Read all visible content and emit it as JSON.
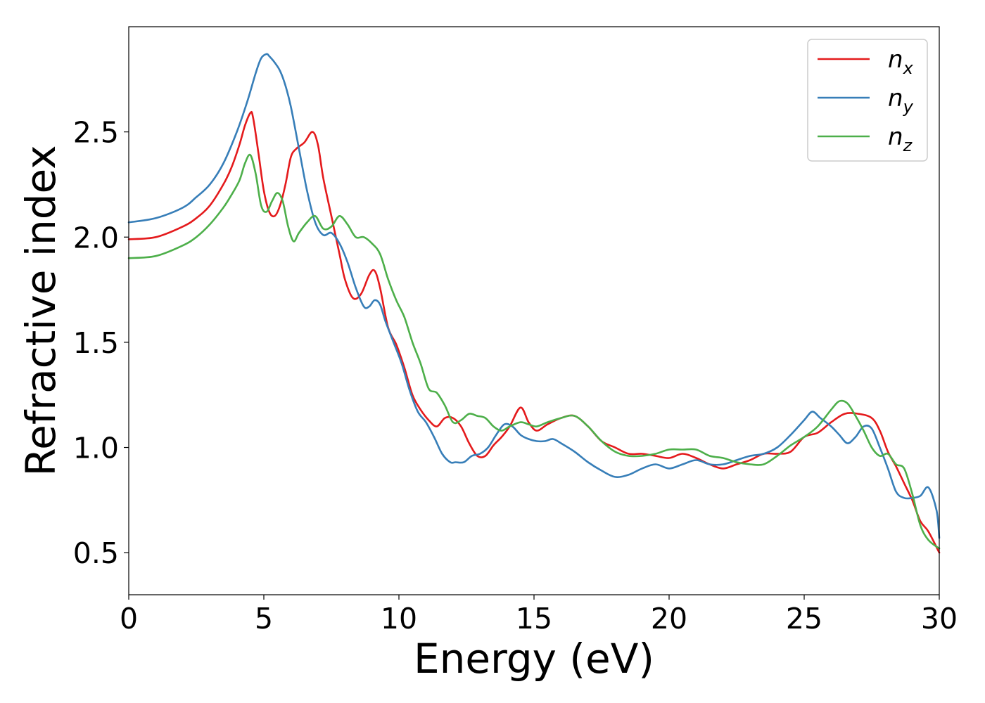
{
  "chart_data": {
    "type": "line",
    "xlabel": "Energy (eV)",
    "ylabel": "Refractive index",
    "xlim": [
      0,
      30
    ],
    "ylim": [
      0.3,
      3.0
    ],
    "xticks": [
      "0",
      "5",
      "10",
      "15",
      "20",
      "25",
      "30"
    ],
    "yticks": [
      "0.5",
      "1.0",
      "1.5",
      "2.0",
      "2.5"
    ],
    "grid": false,
    "legend_position": "top-right",
    "series": [
      {
        "name": "n",
        "subscript": "x",
        "color": "#e41a1c",
        "x": [
          0,
          1,
          2,
          2.5,
          3,
          3.5,
          3.8,
          4.1,
          4.3,
          4.5,
          4.6,
          4.8,
          5.0,
          5.2,
          5.4,
          5.6,
          5.8,
          6.0,
          6.2,
          6.5,
          6.8,
          7.0,
          7.2,
          7.5,
          7.8,
          8.0,
          8.3,
          8.6,
          8.9,
          9.1,
          9.3,
          9.6,
          9.9,
          10.2,
          10.5,
          10.8,
          11.1,
          11.4,
          11.7,
          12.0,
          12.3,
          12.6,
          12.9,
          13.2,
          13.5,
          13.8,
          14.1,
          14.5,
          14.8,
          15.1,
          15.5,
          16.0,
          16.5,
          17.0,
          17.5,
          18.0,
          18.5,
          19.0,
          19.5,
          20.0,
          20.5,
          21.0,
          21.5,
          22.0,
          22.5,
          23.0,
          23.5,
          24.0,
          24.5,
          25.0,
          25.5,
          26.0,
          26.5,
          27.0,
          27.5,
          27.8,
          28.1,
          28.4,
          28.7,
          29.0,
          29.3,
          29.6,
          30.0
        ],
        "y": [
          1.99,
          2.0,
          2.05,
          2.09,
          2.15,
          2.25,
          2.33,
          2.44,
          2.53,
          2.59,
          2.57,
          2.4,
          2.22,
          2.12,
          2.1,
          2.15,
          2.25,
          2.38,
          2.42,
          2.45,
          2.5,
          2.44,
          2.28,
          2.1,
          1.92,
          1.8,
          1.71,
          1.73,
          1.82,
          1.84,
          1.76,
          1.57,
          1.49,
          1.38,
          1.25,
          1.18,
          1.13,
          1.1,
          1.14,
          1.14,
          1.1,
          1.02,
          0.96,
          0.96,
          1.01,
          1.05,
          1.1,
          1.19,
          1.12,
          1.08,
          1.11,
          1.14,
          1.15,
          1.1,
          1.03,
          1.0,
          0.97,
          0.97,
          0.96,
          0.95,
          0.97,
          0.95,
          0.92,
          0.9,
          0.92,
          0.94,
          0.97,
          0.97,
          0.98,
          1.05,
          1.07,
          1.12,
          1.16,
          1.16,
          1.14,
          1.08,
          0.98,
          0.91,
          0.83,
          0.75,
          0.65,
          0.6,
          0.5
        ]
      },
      {
        "name": "n",
        "subscript": "y",
        "color": "#377eb8",
        "x": [
          0,
          1,
          2,
          2.5,
          3,
          3.5,
          4.0,
          4.4,
          4.7,
          4.9,
          5.1,
          5.2,
          5.4,
          5.6,
          5.8,
          6.0,
          6.3,
          6.6,
          6.9,
          7.2,
          7.5,
          7.8,
          8.1,
          8.4,
          8.7,
          8.9,
          9.1,
          9.3,
          9.5,
          9.8,
          10.1,
          10.4,
          10.7,
          11.0,
          11.3,
          11.6,
          11.9,
          12.1,
          12.4,
          12.7,
          13.0,
          13.3,
          13.6,
          13.9,
          14.2,
          14.5,
          14.8,
          15.1,
          15.4,
          15.7,
          16.0,
          16.5,
          17.0,
          17.5,
          18.0,
          18.5,
          19.0,
          19.5,
          20.0,
          20.5,
          21.0,
          21.5,
          22.0,
          22.5,
          23.0,
          23.5,
          24.0,
          24.5,
          25.0,
          25.3,
          25.6,
          26.0,
          26.3,
          26.6,
          26.9,
          27.2,
          27.5,
          27.8,
          28.1,
          28.4,
          28.7,
          29.0,
          29.3,
          29.6,
          29.9,
          30.0
        ],
        "y": [
          2.07,
          2.09,
          2.14,
          2.19,
          2.25,
          2.35,
          2.5,
          2.65,
          2.78,
          2.85,
          2.87,
          2.86,
          2.83,
          2.79,
          2.72,
          2.62,
          2.42,
          2.22,
          2.07,
          2.01,
          2.02,
          1.97,
          1.88,
          1.76,
          1.67,
          1.67,
          1.7,
          1.68,
          1.6,
          1.5,
          1.4,
          1.27,
          1.17,
          1.12,
          1.05,
          0.97,
          0.93,
          0.93,
          0.93,
          0.96,
          0.97,
          1.0,
          1.06,
          1.11,
          1.1,
          1.06,
          1.04,
          1.03,
          1.03,
          1.04,
          1.02,
          0.98,
          0.93,
          0.89,
          0.86,
          0.87,
          0.9,
          0.92,
          0.9,
          0.92,
          0.94,
          0.92,
          0.92,
          0.94,
          0.96,
          0.97,
          1.0,
          1.06,
          1.13,
          1.17,
          1.14,
          1.1,
          1.06,
          1.02,
          1.05,
          1.1,
          1.09,
          1.0,
          0.9,
          0.79,
          0.76,
          0.76,
          0.77,
          0.81,
          0.7,
          0.57
        ]
      },
      {
        "name": "n",
        "subscript": "z",
        "color": "#4daf4a",
        "x": [
          0,
          1,
          2,
          2.5,
          3,
          3.5,
          3.8,
          4.1,
          4.3,
          4.5,
          4.7,
          4.9,
          5.1,
          5.3,
          5.5,
          5.7,
          5.9,
          6.1,
          6.3,
          6.6,
          6.9,
          7.2,
          7.5,
          7.8,
          8.1,
          8.4,
          8.7,
          9.0,
          9.3,
          9.6,
          9.9,
          10.2,
          10.5,
          10.8,
          11.1,
          11.4,
          11.7,
          12.0,
          12.3,
          12.6,
          12.9,
          13.2,
          13.5,
          13.8,
          14.1,
          14.5,
          14.8,
          15.1,
          15.5,
          16.0,
          16.5,
          17.0,
          17.5,
          18.0,
          18.5,
          19.0,
          19.5,
          20.0,
          20.5,
          21.0,
          21.5,
          22.0,
          22.5,
          23.0,
          23.5,
          24.0,
          24.5,
          25.0,
          25.5,
          26.0,
          26.3,
          26.6,
          26.9,
          27.2,
          27.5,
          27.8,
          28.1,
          28.4,
          28.7,
          29.0,
          29.3,
          29.6,
          30.0
        ],
        "y": [
          1.9,
          1.91,
          1.96,
          2.0,
          2.06,
          2.14,
          2.2,
          2.27,
          2.35,
          2.39,
          2.3,
          2.15,
          2.12,
          2.17,
          2.21,
          2.17,
          2.05,
          1.98,
          2.02,
          2.07,
          2.1,
          2.04,
          2.05,
          2.1,
          2.06,
          2.0,
          2.0,
          1.97,
          1.92,
          1.8,
          1.7,
          1.62,
          1.5,
          1.4,
          1.28,
          1.26,
          1.2,
          1.12,
          1.13,
          1.16,
          1.15,
          1.14,
          1.1,
          1.08,
          1.1,
          1.12,
          1.11,
          1.1,
          1.12,
          1.14,
          1.15,
          1.1,
          1.03,
          0.98,
          0.96,
          0.96,
          0.97,
          0.99,
          0.99,
          0.99,
          0.96,
          0.95,
          0.93,
          0.92,
          0.92,
          0.96,
          1.01,
          1.05,
          1.1,
          1.18,
          1.22,
          1.21,
          1.15,
          1.08,
          1.0,
          0.96,
          0.97,
          0.92,
          0.9,
          0.78,
          0.63,
          0.56,
          0.52
        ]
      }
    ]
  }
}
